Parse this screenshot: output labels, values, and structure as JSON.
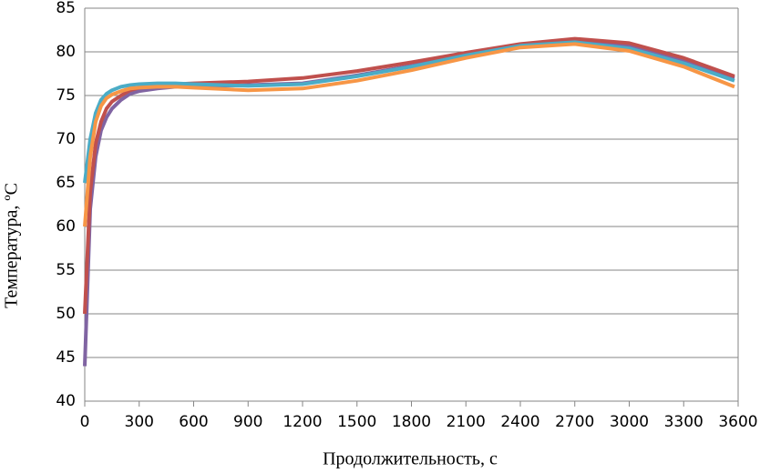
{
  "chart_data": {
    "type": "line",
    "x_label": "Продолжительность, с",
    "y_label": "Температура, ºС",
    "x": [
      0,
      30,
      60,
      90,
      120,
      150,
      200,
      250,
      300,
      400,
      500,
      600,
      900,
      1200,
      1500,
      1800,
      2100,
      2400,
      2700,
      3000,
      3300,
      3580
    ],
    "series": [
      {
        "color": "#8064a2",
        "values": [
          44,
          62,
          68,
          71,
          72.5,
          73.5,
          74.5,
          75.2,
          75.5,
          75.8,
          76,
          76,
          76.2,
          76.4,
          77.3,
          78.4,
          79.7,
          80.8,
          81.3,
          80.7,
          79,
          77
        ]
      },
      {
        "color": "#c0504d",
        "values": [
          50,
          64,
          69.5,
          72,
          73.5,
          74.3,
          75,
          75.6,
          75.9,
          76.2,
          76.3,
          76.4,
          76.6,
          77,
          77.8,
          78.8,
          79.9,
          80.9,
          81.5,
          81,
          79.3,
          77.2
        ]
      },
      {
        "color": "#4bacc6",
        "values": [
          65,
          70,
          73,
          74.5,
          75.2,
          75.6,
          76,
          76.2,
          76.3,
          76.4,
          76.4,
          76.3,
          76.1,
          76.3,
          77.2,
          78.3,
          79.6,
          80.7,
          81.1,
          80.4,
          78.7,
          76.7
        ]
      },
      {
        "color": "#f79646",
        "values": [
          60,
          68,
          72,
          73.8,
          74.7,
          75.1,
          75.5,
          75.8,
          75.9,
          76,
          76,
          75.9,
          75.6,
          75.8,
          76.7,
          77.9,
          79.3,
          80.5,
          80.9,
          80.1,
          78.3,
          76
        ]
      }
    ],
    "xlim": [
      0,
      3600
    ],
    "xticks": [
      0,
      300,
      600,
      900,
      1200,
      1500,
      1800,
      2100,
      2400,
      2700,
      3000,
      3300,
      3600
    ],
    "ylim": [
      40,
      85
    ],
    "yticks": [
      40,
      45,
      50,
      55,
      60,
      65,
      70,
      75,
      80,
      85
    ],
    "grid": true
  }
}
